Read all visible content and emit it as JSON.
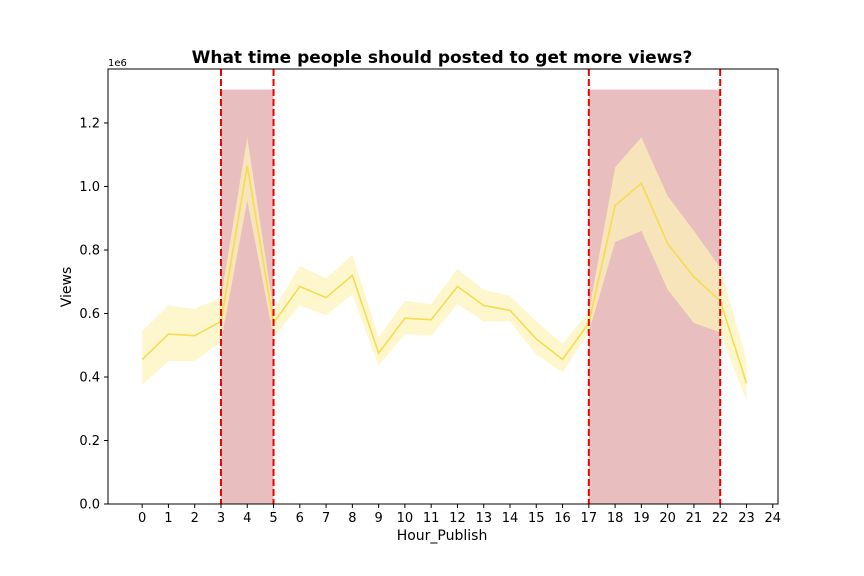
{
  "chart_data": {
    "type": "line",
    "title": "What time people should posted to get more views?",
    "xlabel": "Hour_Publish",
    "ylabel": "Views",
    "y_offset_label": "1e6",
    "xlim": [
      -1.3,
      24.2
    ],
    "ylim": [
      0,
      1.37
    ],
    "y_scale_factor": 1000000,
    "x_ticks": [
      "0",
      "1",
      "2",
      "3",
      "4",
      "5",
      "6",
      "7",
      "8",
      "9",
      "10",
      "11",
      "12",
      "13",
      "14",
      "15",
      "16",
      "17",
      "18",
      "19",
      "20",
      "21",
      "22",
      "23",
      "24"
    ],
    "y_ticks": [
      "0.0",
      "0.2",
      "0.4",
      "0.6",
      "0.8",
      "1.0",
      "1.2"
    ],
    "grid": false,
    "series": [
      {
        "color": "#f5dc50",
        "band_color": "#fdf3b8",
        "x": [
          0,
          1,
          2,
          3,
          4,
          5,
          6,
          7,
          8,
          9,
          10,
          11,
          12,
          13,
          14,
          15,
          16,
          17,
          18,
          19,
          20,
          21,
          22,
          23
        ],
        "y": [
          0.455,
          0.535,
          0.53,
          0.575,
          1.065,
          0.57,
          0.685,
          0.65,
          0.72,
          0.475,
          0.585,
          0.58,
          0.685,
          0.625,
          0.61,
          0.52,
          0.455,
          0.57,
          0.94,
          1.01,
          0.82,
          0.715,
          0.64,
          0.38
        ],
        "ci_low": [
          0.375,
          0.45,
          0.45,
          0.51,
          0.955,
          0.525,
          0.625,
          0.595,
          0.66,
          0.435,
          0.535,
          0.53,
          0.63,
          0.575,
          0.575,
          0.47,
          0.415,
          0.54,
          0.825,
          0.86,
          0.675,
          0.57,
          0.54,
          0.325
        ],
        "ci_high": [
          0.545,
          0.625,
          0.615,
          0.65,
          1.155,
          0.61,
          0.75,
          0.71,
          0.785,
          0.525,
          0.64,
          0.63,
          0.74,
          0.675,
          0.655,
          0.575,
          0.505,
          0.605,
          1.06,
          1.155,
          0.97,
          0.86,
          0.745,
          0.455
        ]
      }
    ],
    "highlight_regions": [
      {
        "x_start": 3,
        "x_end": 5,
        "y_top": 1.305,
        "color": "#e8bebe"
      },
      {
        "x_start": 17,
        "x_end": 22,
        "y_top": 1.305,
        "color": "#e8bebe"
      }
    ],
    "vertical_lines": {
      "x": [
        3,
        5,
        17,
        22
      ],
      "color": "#ee0000",
      "style": "dashed"
    }
  }
}
